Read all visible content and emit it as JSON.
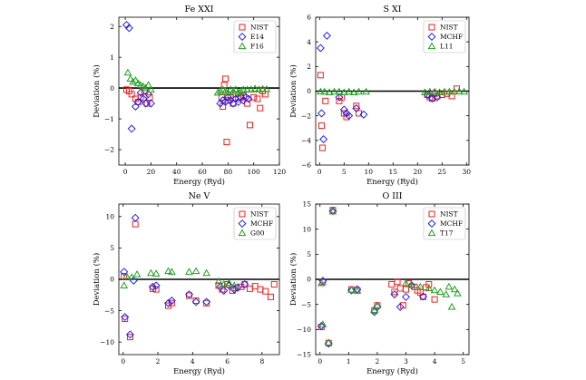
{
  "figure": {
    "colors": {
      "nist": "#ee2222",
      "var2": "#2222ee",
      "var3": "#22a022",
      "zero_line": "#000000"
    }
  },
  "chart_data": [
    {
      "type": "scatter",
      "title": "Fe XXI",
      "xlabel": "Energy (Ryd)",
      "ylabel": "Deviation (%)",
      "xlim": [
        -5,
        120
      ],
      "ylim": [
        -2.5,
        2.3
      ],
      "xticks": [
        0,
        20,
        40,
        60,
        80,
        100,
        120
      ],
      "yticks": [
        -2,
        -1,
        0,
        1,
        2
      ],
      "legend": [
        "NIST",
        "E14",
        "F16"
      ],
      "series": [
        {
          "name": "NIST",
          "marker": "square",
          "x": [
            1,
            3,
            5,
            8,
            10,
            12,
            15,
            17,
            19,
            75,
            76,
            77,
            78,
            79,
            80,
            82,
            84,
            86,
            88,
            90,
            92,
            95,
            97,
            100,
            103,
            105,
            107,
            109
          ],
          "y": [
            -0.05,
            -0.1,
            -0.2,
            -0.35,
            -0.45,
            -0.3,
            -0.1,
            -0.5,
            -0.3,
            -0.3,
            -0.6,
            0.1,
            0.3,
            -1.75,
            -0.4,
            -0.3,
            -0.5,
            -0.2,
            -0.35,
            -0.3,
            -0.25,
            -0.5,
            -1.2,
            -0.3,
            -0.35,
            -0.65,
            -0.1,
            -0.2
          ]
        },
        {
          "name": "E14",
          "marker": "diamond",
          "x": [
            1,
            3,
            5,
            8,
            10,
            12,
            14,
            16,
            18,
            20,
            74,
            76,
            78,
            80,
            82,
            84,
            86,
            88,
            90,
            92,
            94,
            96
          ],
          "y": [
            2.05,
            1.95,
            -1.32,
            -0.6,
            -0.45,
            -0.15,
            -0.35,
            -0.5,
            -0.2,
            -0.5,
            -0.5,
            -0.4,
            -0.45,
            -0.3,
            -0.4,
            -0.5,
            -0.35,
            -0.45,
            -0.3,
            -0.4,
            -0.3,
            -0.35
          ]
        },
        {
          "name": "F16",
          "marker": "triangle",
          "x": [
            2,
            4,
            6,
            8,
            10,
            12,
            14,
            16,
            18,
            20,
            72,
            74,
            76,
            78,
            80,
            82,
            84,
            86,
            88,
            90,
            92,
            95,
            98,
            101,
            104,
            107,
            110
          ],
          "y": [
            0.5,
            0.3,
            0.2,
            0.25,
            0.15,
            0.1,
            0.05,
            0.0,
            0.1,
            -0.05,
            -0.15,
            -0.1,
            -0.05,
            -0.1,
            -0.15,
            -0.05,
            -0.1,
            -0.05,
            -0.15,
            -0.1,
            -0.05,
            -0.05,
            -0.05,
            -0.02,
            -0.05,
            -0.03,
            -0.04
          ]
        }
      ]
    },
    {
      "type": "scatter",
      "title": "S XI",
      "xlabel": "Energy (Ryd)",
      "ylabel": "Deviation (%)",
      "xlim": [
        -0.8,
        30.5
      ],
      "ylim": [
        -6,
        6
      ],
      "xticks": [
        0,
        5,
        10,
        15,
        20,
        25,
        30
      ],
      "yticks": [
        -6,
        -4,
        -2,
        0,
        2,
        4,
        6
      ],
      "legend": [
        "NIST",
        "MCHF",
        "L11"
      ],
      "series": [
        {
          "name": "NIST",
          "marker": "square",
          "x": [
            0.2,
            0.4,
            0.6,
            1.2,
            4,
            4.5,
            5,
            5.5,
            7.5,
            8,
            22,
            22.5,
            23,
            23.5,
            24,
            25,
            26,
            27,
            28
          ],
          "y": [
            1.3,
            -2.8,
            -4.6,
            -0.8,
            -0.8,
            -0.5,
            -1.8,
            -2.1,
            -1.2,
            -1.8,
            -0.3,
            -0.5,
            -0.6,
            -0.2,
            -0.4,
            -0.3,
            -0.2,
            -0.4,
            0.2
          ]
        },
        {
          "name": "MCHF",
          "marker": "diamond",
          "x": [
            0.2,
            0.4,
            0.8,
            1.5,
            4,
            5,
            5.5,
            6,
            7.5,
            9,
            22,
            23,
            23.5,
            24
          ],
          "y": [
            3.5,
            -1.8,
            -3.9,
            4.5,
            -0.5,
            -1.5,
            -1.8,
            -2.0,
            -1.4,
            -1.9,
            -0.3,
            -0.6,
            -0.2,
            -0.5
          ]
        },
        {
          "name": "L11",
          "marker": "triangle",
          "x": [
            0.2,
            1,
            2,
            3,
            4,
            5,
            6,
            7,
            8,
            9.5,
            21.5,
            22.5,
            23.5,
            24.5,
            25.5,
            26.5,
            27.5,
            28.5,
            29.5
          ],
          "y": [
            -0.05,
            -0.05,
            -0.1,
            -0.05,
            -0.05,
            -0.1,
            -0.05,
            -0.1,
            -0.05,
            -0.05,
            -0.1,
            -0.05,
            -0.05,
            -0.1,
            -0.05,
            -0.05,
            -0.05,
            -0.03,
            -0.05
          ]
        }
      ]
    },
    {
      "type": "scatter",
      "title": "Ne V",
      "xlabel": "Energy (Ryd)",
      "ylabel": "Deviation (%)",
      "xlim": [
        -0.25,
        9
      ],
      "ylim": [
        -12,
        12
      ],
      "xticks": [
        0,
        2,
        4,
        6,
        8
      ],
      "yticks": [
        -10,
        -5,
        0,
        5,
        10
      ],
      "legend": [
        "NIST",
        "MCHF",
        "G00"
      ],
      "series": [
        {
          "name": "NIST",
          "marker": "square",
          "x": [
            0.05,
            0.1,
            0.4,
            0.7,
            1.7,
            1.9,
            2.6,
            2.8,
            3.8,
            4.2,
            4.8,
            5.5,
            5.7,
            6.0,
            6.3,
            6.5,
            6.8,
            7.0,
            7.3,
            7.6,
            7.9,
            8.2,
            8.5,
            8.7
          ],
          "y": [
            0.5,
            -6.3,
            -9.2,
            8.8,
            -1.5,
            -1.6,
            -4.2,
            -3.8,
            -2.6,
            -3.4,
            -3.8,
            -1.0,
            -1.6,
            -0.8,
            -1.8,
            -1.4,
            -1.2,
            -0.8,
            -1.5,
            -1.1,
            -1.6,
            -1.9,
            -2.8,
            -0.8
          ]
        },
        {
          "name": "MCHF",
          "marker": "diamond",
          "x": [
            0.05,
            0.1,
            0.4,
            0.6,
            0.7,
            1.7,
            1.9,
            2.6,
            2.8,
            3.8,
            4.2,
            4.8,
            5.6,
            5.8,
            6.1,
            6.4,
            6.6,
            7.0
          ],
          "y": [
            1.2,
            -6.0,
            -8.8,
            -0.2,
            9.8,
            -1.2,
            -1.0,
            -3.8,
            -3.4,
            -2.4,
            -3.6,
            -3.6,
            -1.2,
            -1.8,
            -1.0,
            -1.6,
            -1.3,
            -0.8
          ]
        },
        {
          "name": "G00",
          "marker": "triangle",
          "x": [
            0.05,
            0.2,
            0.5,
            0.8,
            1.6,
            1.9,
            2.6,
            2.8,
            3.8,
            4.2,
            4.8,
            5.5,
            5.8,
            6.1,
            6.4
          ],
          "y": [
            -1.0,
            0.5,
            0.3,
            0.8,
            1.0,
            0.9,
            1.3,
            1.2,
            1.2,
            1.3,
            1.0,
            -0.3,
            -0.8,
            -0.6,
            -1.0
          ]
        }
      ]
    },
    {
      "type": "scatter",
      "title": "O III",
      "xlabel": "Energy (Ryd)",
      "ylabel": "Deviation (%)",
      "xlim": [
        -0.15,
        5.2
      ],
      "ylim": [
        -15,
        15
      ],
      "xticks": [
        0,
        1,
        2,
        3,
        4,
        5
      ],
      "yticks": [
        -15,
        -10,
        -5,
        0,
        5,
        10,
        15
      ],
      "legend": [
        "NIST",
        "MCHF",
        "T17"
      ],
      "series": [
        {
          "name": "NIST",
          "marker": "square",
          "x": [
            0.05,
            0.1,
            0.3,
            0.45,
            1.1,
            1.3,
            1.9,
            2.0,
            2.5,
            2.6,
            2.7,
            2.8,
            2.9,
            3.0,
            3.1,
            3.3,
            3.4,
            3.5,
            3.6,
            3.7,
            3.8,
            4.0
          ],
          "y": [
            -9.5,
            -0.5,
            -12.7,
            13.8,
            -2.0,
            -2.2,
            -6.2,
            -5.2,
            -1.0,
            -2.5,
            -0.5,
            -1.8,
            -5.2,
            -2.0,
            -0.8,
            -1.5,
            -2.2,
            -2.6,
            -3.5,
            -1.6,
            -1.0,
            -4.0
          ]
        },
        {
          "name": "MCHF",
          "marker": "diamond",
          "x": [
            0.05,
            0.1,
            0.3,
            0.45,
            1.1,
            1.3,
            1.9,
            2.0,
            2.6,
            2.8,
            3.0,
            3.2,
            3.6
          ],
          "y": [
            -9.3,
            -0.3,
            -12.8,
            13.6,
            -2.2,
            -2.0,
            -6.5,
            -5.5,
            -3.0,
            -5.5,
            -3.5,
            -1.2,
            -3.4
          ]
        },
        {
          "name": "T17",
          "marker": "triangle",
          "x": [
            0.05,
            0.1,
            0.3,
            0.45,
            1.1,
            1.3,
            1.9,
            2.0,
            3.0,
            3.2,
            3.5,
            3.8,
            4.0,
            4.2,
            4.4,
            4.5,
            4.6,
            4.7,
            4.8
          ],
          "y": [
            -0.8,
            -9.0,
            -12.6,
            13.5,
            -2.1,
            -2.3,
            -6.1,
            -5.2,
            -0.8,
            -1.2,
            -1.5,
            -1.8,
            -2.2,
            -2.5,
            -3.0,
            -1.5,
            -5.5,
            -2.0,
            -2.8
          ]
        }
      ]
    }
  ]
}
